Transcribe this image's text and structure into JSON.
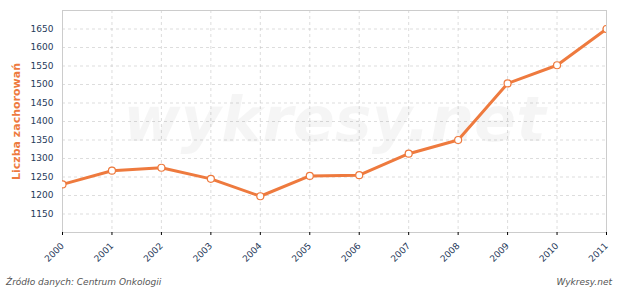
{
  "chart_data": {
    "type": "line",
    "y_label": "Liczba zachorowań",
    "x": [
      2000,
      2001,
      2002,
      2003,
      2004,
      2005,
      2006,
      2007,
      2008,
      2009,
      2010,
      2011
    ],
    "values": [
      1230,
      1267,
      1275,
      1245,
      1198,
      1253,
      1255,
      1313,
      1350,
      1503,
      1552,
      1650
    ],
    "color": "#ee7a3e",
    "marker": "circle",
    "xlim": [
      2000,
      2011
    ],
    "xticks": [
      2000,
      2001,
      2002,
      2003,
      2004,
      2005,
      2006,
      2007,
      2008,
      2009,
      2010,
      2011
    ],
    "ylim": [
      1100,
      1700
    ],
    "yticks": [
      1150,
      1200,
      1250,
      1300,
      1350,
      1400,
      1450,
      1500,
      1550,
      1600,
      1650
    ],
    "grid": true,
    "annotations": [
      "wykresy.net"
    ],
    "caption": "Źródło danych: Centrum Onkologii",
    "credit": "Wykresy.net"
  }
}
